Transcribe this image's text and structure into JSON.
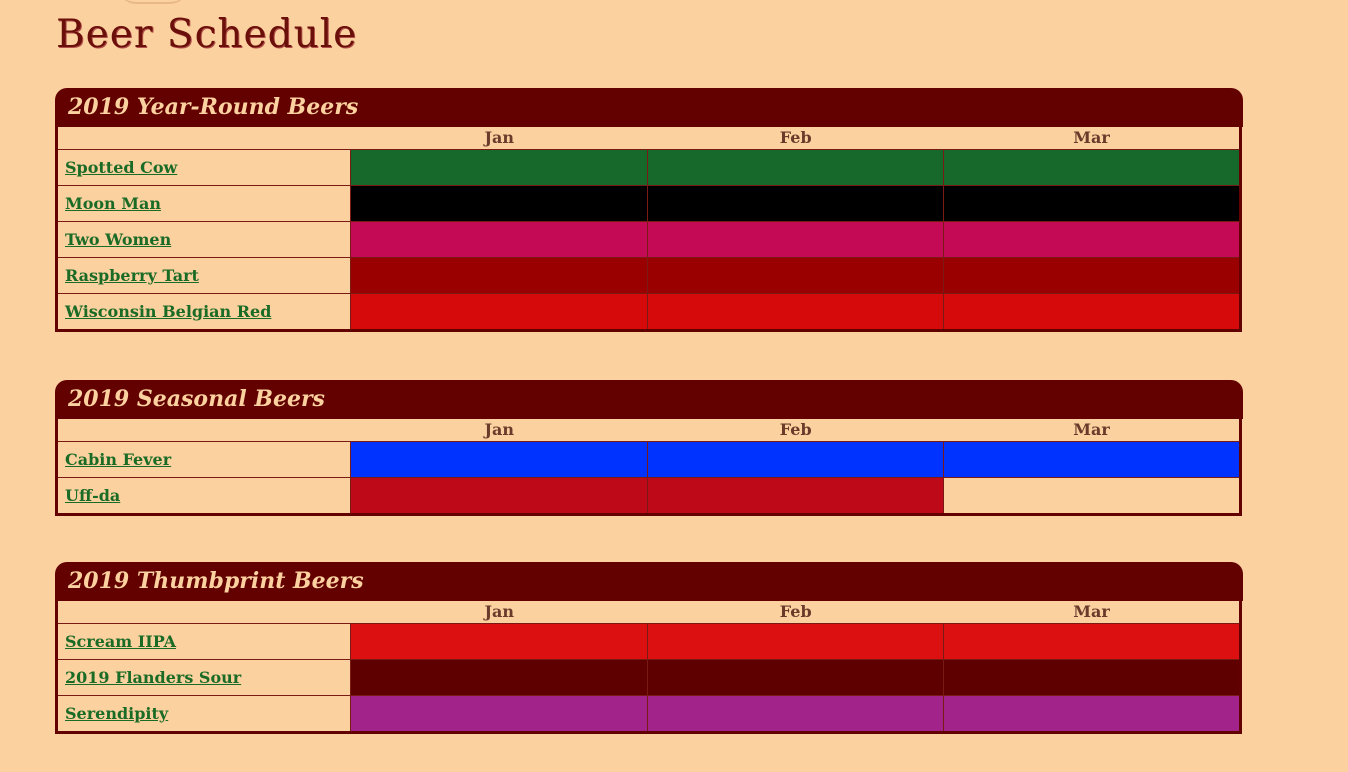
{
  "page_title": "Beer Schedule",
  "sections": [
    {
      "title": "2019 Year-Round Beers",
      "months": [
        "Jan",
        "Feb",
        "Mar"
      ],
      "beers": [
        {
          "name": "Spotted Cow",
          "cells": [
            "#17692b",
            "#17692b",
            "#17692b"
          ]
        },
        {
          "name": "Moon Man",
          "cells": [
            "#000000",
            "#000000",
            "#000000"
          ]
        },
        {
          "name": "Two Women",
          "cells": [
            "#c40a55",
            "#c40a55",
            "#c40a55"
          ]
        },
        {
          "name": "Raspberry Tart",
          "cells": [
            "#9b0000",
            "#9b0000",
            "#9b0000"
          ]
        },
        {
          "name": "Wisconsin Belgian Red",
          "cells": [
            "#d60a0a",
            "#d60a0a",
            "#d60a0a"
          ]
        }
      ]
    },
    {
      "title": "2019 Seasonal Beers",
      "months": [
        "Jan",
        "Feb",
        "Mar"
      ],
      "beers": [
        {
          "name": "Cabin Fever",
          "cells": [
            "#0033ff",
            "#0033ff",
            "#0033ff"
          ]
        },
        {
          "name": "Uff-da",
          "cells": [
            "#be0a18",
            "#be0a18",
            ""
          ]
        }
      ]
    },
    {
      "title": "2019 Thumbprint Beers",
      "months": [
        "Jan",
        "Feb",
        "Mar"
      ],
      "beers": [
        {
          "name": "Scream IIPA",
          "cells": [
            "#dc1010",
            "#dc1010",
            "#dc1010"
          ]
        },
        {
          "name": "2019 Flanders Sour",
          "cells": [
            "#5e0000",
            "#5e0000",
            "#5e0000"
          ]
        },
        {
          "name": "Serendipity",
          "cells": [
            "#a2238a",
            "#a2238a",
            "#a2238a"
          ]
        }
      ]
    }
  ]
}
